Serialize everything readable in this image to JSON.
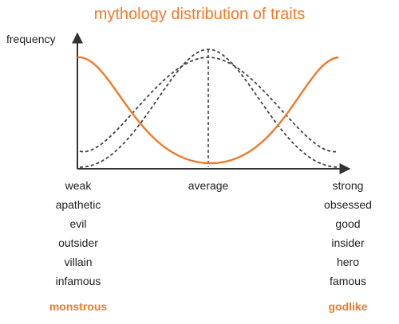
{
  "title": "mythology distribution of traits",
  "y_axis_label": "frequency",
  "center_label": "average",
  "left_traits": [
    "weak",
    "apathetic",
    "evil",
    "outsider",
    "villain",
    "infamous"
  ],
  "right_traits": [
    "strong",
    "obsessed",
    "good",
    "insider",
    "hero",
    "famous"
  ],
  "left_extreme": "monstrous",
  "right_extreme": "godlike",
  "colors": {
    "accent": "#ef7a2b",
    "text": "#222222",
    "axis": "#333333",
    "dashed": "#444444"
  }
}
